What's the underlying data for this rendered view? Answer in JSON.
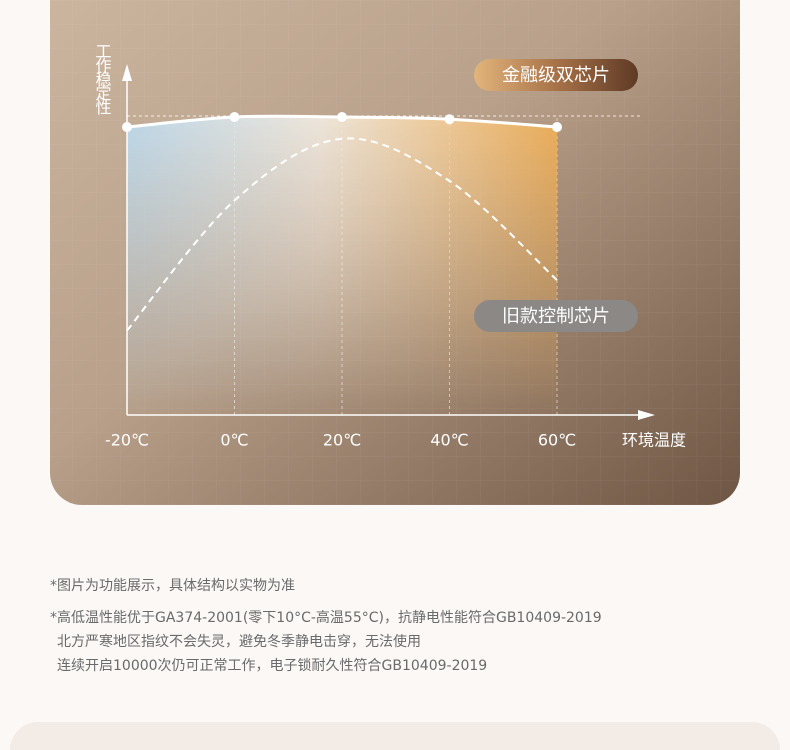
{
  "chart_data": {
    "type": "line",
    "y_label": "工作稳定性",
    "x_label": "环境温度",
    "categories": [
      "-20℃",
      "0℃",
      "20℃",
      "40℃",
      "60℃"
    ],
    "series": [
      {
        "name": "金融级双芯片",
        "color": "#ffffff",
        "line_style": "solid",
        "values": [
          88.6,
          91.7,
          91.7,
          91,
          88.6
        ]
      },
      {
        "name": "旧款控制芯片",
        "color": "#ffffff",
        "line_style": "dashed",
        "values": [
          26,
          66,
          85,
          72,
          41.5
        ]
      }
    ],
    "ylim": [
      0,
      100
    ],
    "grid": true
  },
  "footnotes": [
    "*图片为功能展示，具体结构以实物为准",
    "*高低温性能优于GA374-2001(零下10°C-高温55°C)，抗静电性能符合GB10409-2019",
    "北方严寒地区指纹不会失灵，避免冬季静电击穿，无法使用",
    "连续开启10000次仍可正常工作，电子锁耐久性符合GB10409-2019"
  ]
}
